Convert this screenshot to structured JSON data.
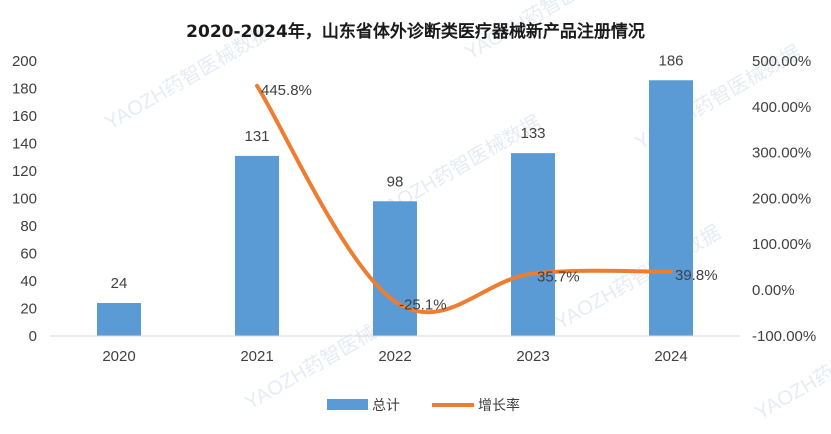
{
  "chart_data": {
    "type": "bar",
    "title": "2020-2024年，山东省体外诊断类医疗器械新产品注册情况",
    "categories": [
      "2020",
      "2021",
      "2022",
      "2023",
      "2024"
    ],
    "series": [
      {
        "name": "总计",
        "type": "bar",
        "axis": "left",
        "values": [
          24,
          131,
          98,
          133,
          186
        ],
        "labels": [
          "24",
          "131",
          "98",
          "133",
          "186"
        ],
        "color": "#5b9bd5"
      },
      {
        "name": "增长率",
        "type": "line",
        "axis": "right",
        "smooth": true,
        "values": [
          null,
          445.8,
          -25.1,
          35.7,
          39.8
        ],
        "labels": [
          "",
          "445.8%",
          "-25.1%",
          "35.7%",
          "39.8%"
        ],
        "color": "#ed7d31"
      }
    ],
    "y_left": {
      "range": [
        0,
        200
      ],
      "ticks": [
        "0",
        "20",
        "40",
        "60",
        "80",
        "100",
        "120",
        "140",
        "160",
        "180",
        "200"
      ]
    },
    "y_right": {
      "range": [
        -100,
        500
      ],
      "ticks": [
        "-100.00%",
        "0.00%",
        "100.00%",
        "200.00%",
        "300.00%",
        "400.00%",
        "500.00%"
      ]
    },
    "legend_position": "bottom",
    "grid": false,
    "watermark": "YAOZH药智医械数据"
  }
}
